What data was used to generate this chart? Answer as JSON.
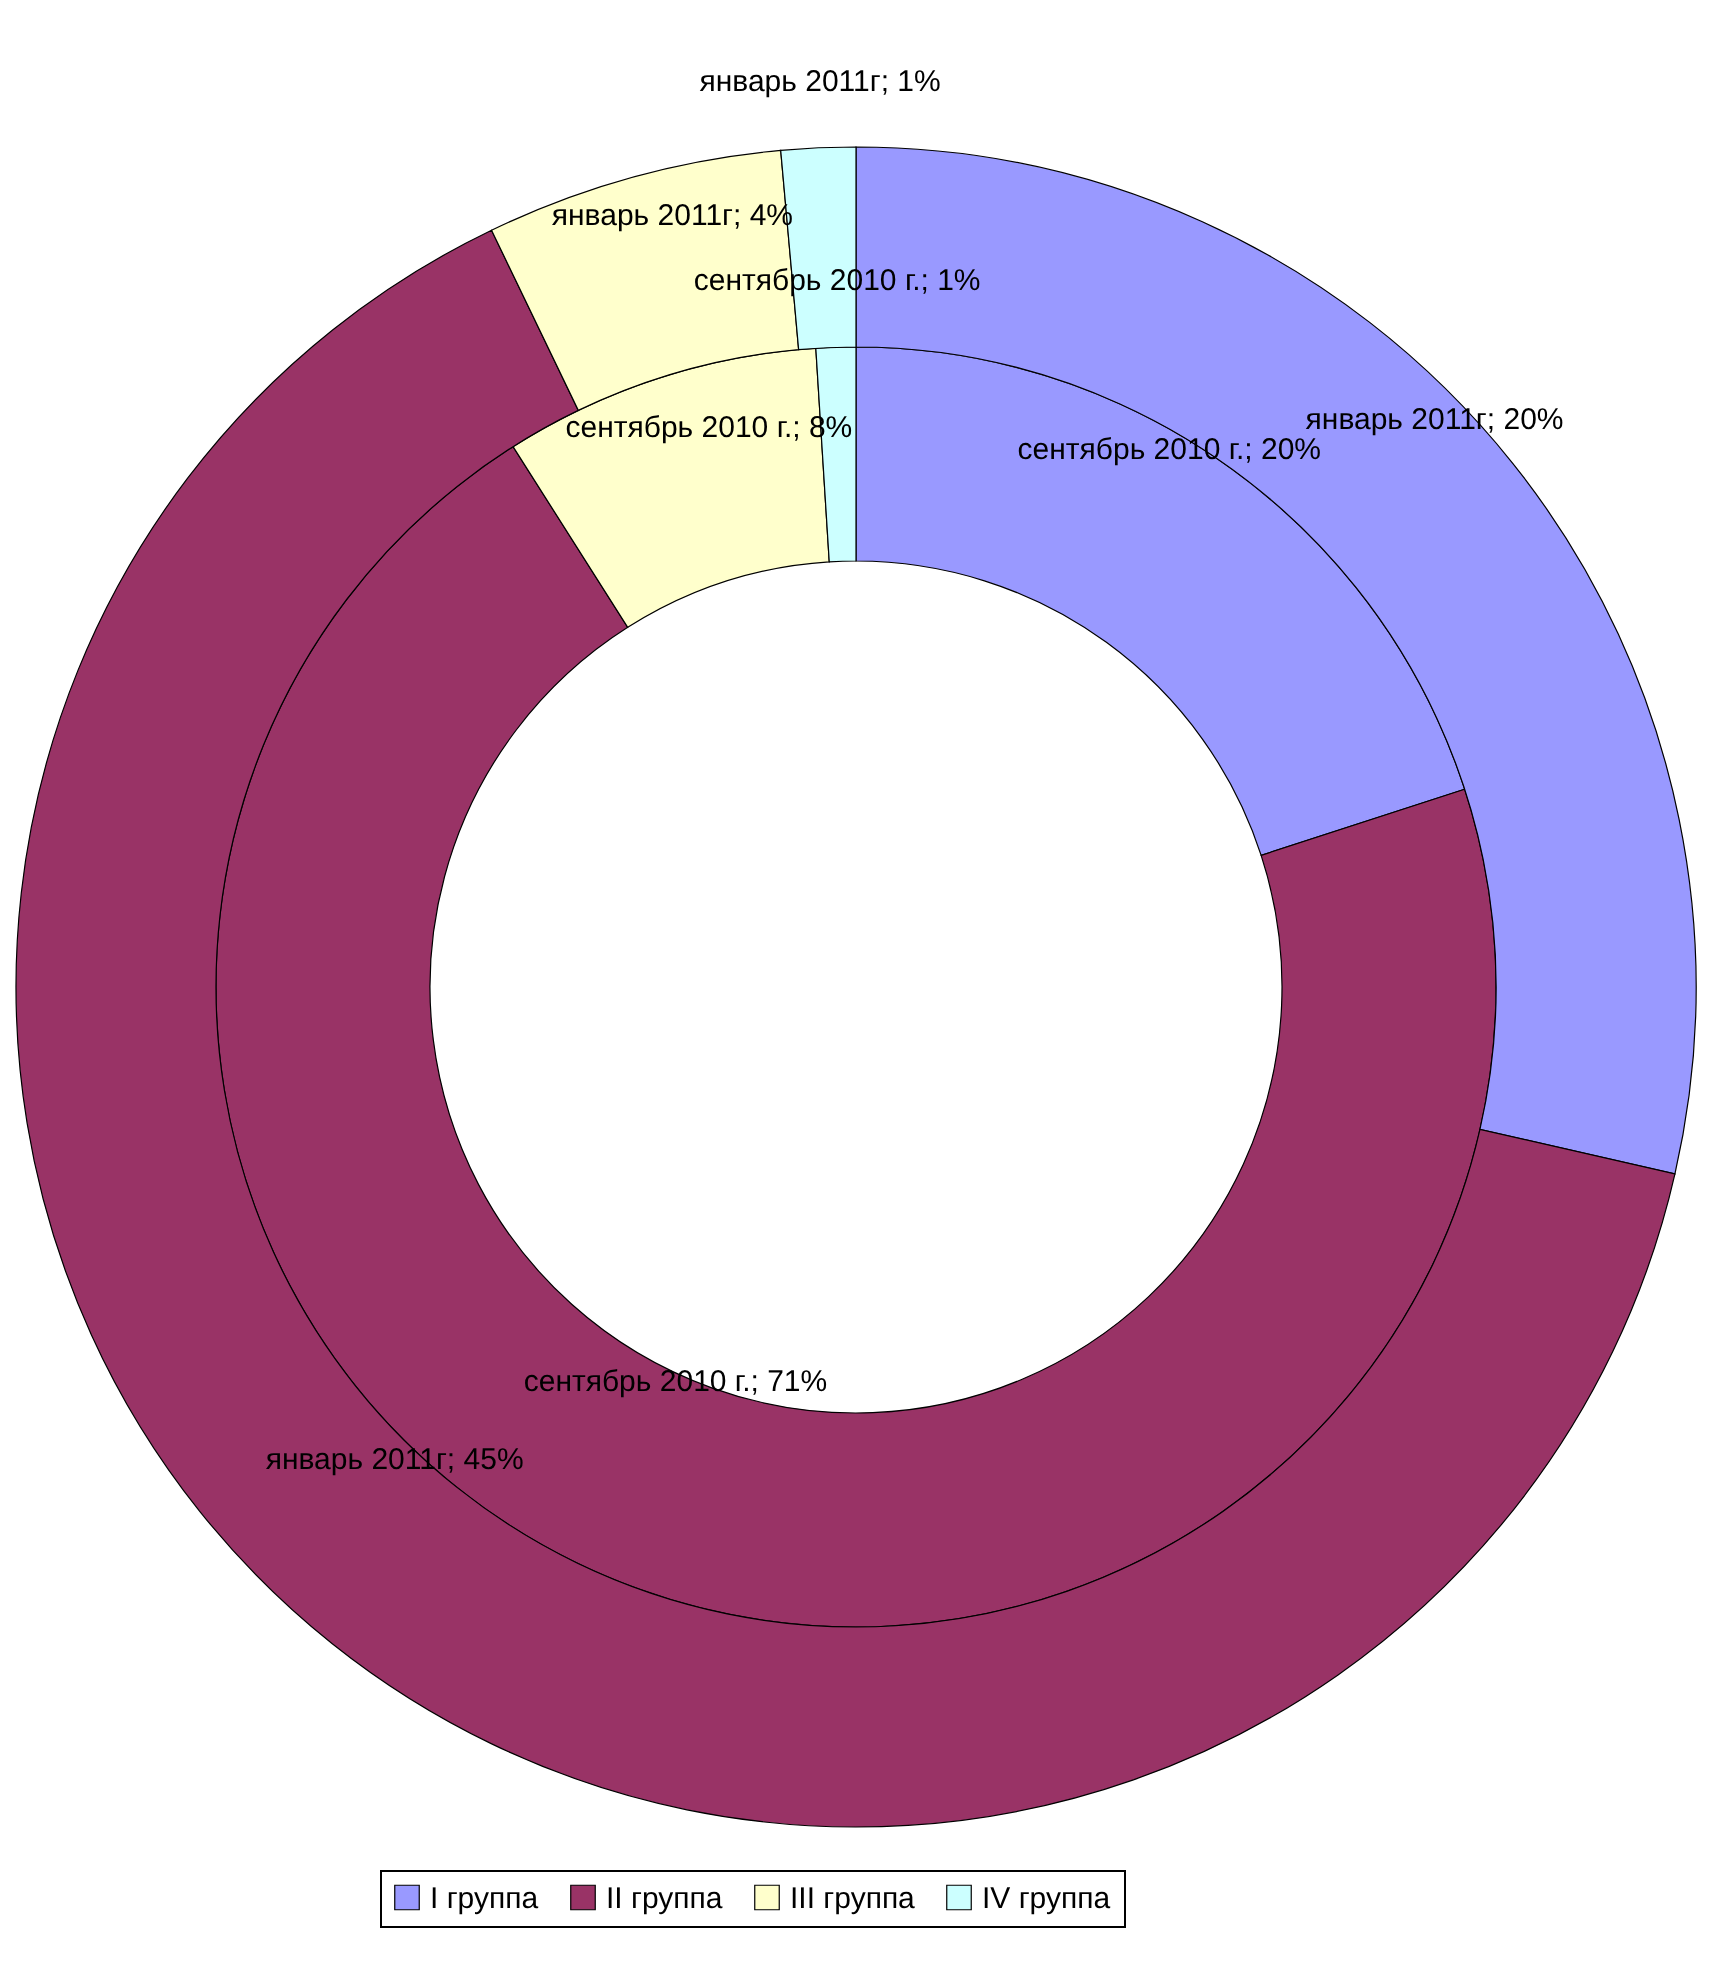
{
  "chart_data": {
    "type": "donut",
    "categories": [
      "I группа",
      "II группа",
      "III группа",
      "IV группа"
    ],
    "colors": [
      "#9999ff",
      "#993366",
      "#ffffcc",
      "#ccffff"
    ],
    "series": [
      {
        "values": [
          20,
          71,
          8,
          1
        ],
        "value_labels": [
          "сентябрь 2010 г.; 20%",
          "сентябрь 2010 г.; 71%",
          "сентябрь 2010 г.; 8%",
          "сентябрь 2010 г.; 1%"
        ]
      },
      {
        "values": [
          20,
          45,
          4,
          1
        ],
        "value_labels": [
          "январь 2011г; 20%",
          "январь 2011г; 45%",
          "январь 2011г; 4%",
          "январь 2011г; 1%"
        ]
      }
    ],
    "legend": "bottom"
  }
}
